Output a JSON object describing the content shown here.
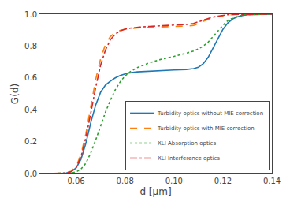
{
  "chart_data": {
    "type": "line",
    "xlabel": "d [μm]",
    "ylabel": "G(d)",
    "xlim": [
      0.045,
      0.14
    ],
    "ylim": [
      0.0,
      1.0
    ],
    "xticks": [
      0.06,
      0.08,
      {
        "value": 0.1,
        "label": "0.10"
      },
      0.12,
      0.14
    ],
    "yticks": [
      {
        "value": 0.0,
        "label": "0.0"
      },
      0.2,
      0.4,
      0.6,
      0.8,
      {
        "value": 1.0,
        "label": "1.0"
      }
    ],
    "grid": false,
    "legend": "lower right",
    "series": [
      {
        "name": "Turbidity optics without MIE correction",
        "line_style": "solid",
        "x": [
          0.045,
          0.05,
          0.052,
          0.054,
          0.056,
          0.058,
          0.06,
          0.062,
          0.064,
          0.066,
          0.068,
          0.07,
          0.072,
          0.074,
          0.076,
          0.078,
          0.08,
          0.082,
          0.085,
          0.09,
          0.095,
          0.1,
          0.105,
          0.108,
          0.11,
          0.112,
          0.114,
          0.116,
          0.118,
          0.12,
          0.122,
          0.124,
          0.126,
          0.128,
          0.13,
          0.135,
          0.14
        ],
        "values": [
          0.0,
          0.0,
          0.0,
          0.001,
          0.004,
          0.012,
          0.035,
          0.09,
          0.19,
          0.32,
          0.43,
          0.51,
          0.555,
          0.58,
          0.6,
          0.615,
          0.625,
          0.632,
          0.638,
          0.643,
          0.647,
          0.65,
          0.653,
          0.658,
          0.667,
          0.69,
          0.73,
          0.79,
          0.85,
          0.905,
          0.945,
          0.97,
          0.984,
          0.992,
          0.996,
          0.999,
          1.0
        ]
      },
      {
        "name": "Turbidity optics with MIE correction",
        "line_style": "dashed",
        "x": [
          0.045,
          0.05,
          0.052,
          0.054,
          0.056,
          0.058,
          0.06,
          0.062,
          0.064,
          0.066,
          0.068,
          0.07,
          0.072,
          0.074,
          0.076,
          0.078,
          0.08,
          0.082,
          0.084,
          0.086,
          0.09,
          0.095,
          0.1,
          0.105,
          0.108,
          0.11,
          0.112,
          0.115,
          0.118,
          0.12,
          0.122,
          0.125,
          0.13,
          0.135,
          0.14
        ],
        "values": [
          0.0,
          0.0,
          0.0,
          0.001,
          0.004,
          0.015,
          0.045,
          0.12,
          0.25,
          0.42,
          0.59,
          0.72,
          0.81,
          0.86,
          0.885,
          0.898,
          0.906,
          0.91,
          0.913,
          0.915,
          0.918,
          0.92,
          0.922,
          0.925,
          0.93,
          0.94,
          0.955,
          0.972,
          0.984,
          0.991,
          0.995,
          0.998,
          1.0,
          1.0,
          1.0
        ]
      },
      {
        "name": "XLI Absorption optics",
        "line_style": "dotted",
        "x": [
          0.045,
          0.05,
          0.052,
          0.054,
          0.056,
          0.058,
          0.06,
          0.062,
          0.064,
          0.066,
          0.068,
          0.07,
          0.072,
          0.074,
          0.076,
          0.078,
          0.08,
          0.082,
          0.085,
          0.09,
          0.095,
          0.1,
          0.105,
          0.108,
          0.11,
          0.112,
          0.114,
          0.116,
          0.118,
          0.12,
          0.122,
          0.125,
          0.128,
          0.13,
          0.135,
          0.14
        ],
        "values": [
          0.0,
          0.0,
          0.0,
          0.0,
          0.001,
          0.003,
          0.01,
          0.028,
          0.065,
          0.13,
          0.21,
          0.3,
          0.385,
          0.46,
          0.525,
          0.575,
          0.612,
          0.638,
          0.665,
          0.695,
          0.718,
          0.735,
          0.755,
          0.768,
          0.782,
          0.8,
          0.825,
          0.858,
          0.895,
          0.93,
          0.96,
          0.982,
          0.994,
          0.998,
          1.0,
          1.0
        ]
      },
      {
        "name": "XLI Interference optics",
        "line_style": "dashdot",
        "x": [
          0.045,
          0.05,
          0.052,
          0.054,
          0.056,
          0.058,
          0.06,
          0.062,
          0.064,
          0.066,
          0.068,
          0.07,
          0.072,
          0.074,
          0.076,
          0.078,
          0.08,
          0.082,
          0.084,
          0.086,
          0.09,
          0.095,
          0.1,
          0.105,
          0.108,
          0.11,
          0.112,
          0.115,
          0.118,
          0.12,
          0.122,
          0.125,
          0.13,
          0.135,
          0.14
        ],
        "values": [
          0.0,
          0.0,
          0.0,
          0.001,
          0.003,
          0.012,
          0.038,
          0.105,
          0.225,
          0.38,
          0.54,
          0.68,
          0.775,
          0.84,
          0.875,
          0.895,
          0.906,
          0.912,
          0.916,
          0.919,
          0.923,
          0.927,
          0.931,
          0.936,
          0.942,
          0.952,
          0.965,
          0.978,
          0.988,
          0.993,
          0.997,
          0.999,
          1.0,
          1.0,
          1.0
        ]
      }
    ]
  }
}
